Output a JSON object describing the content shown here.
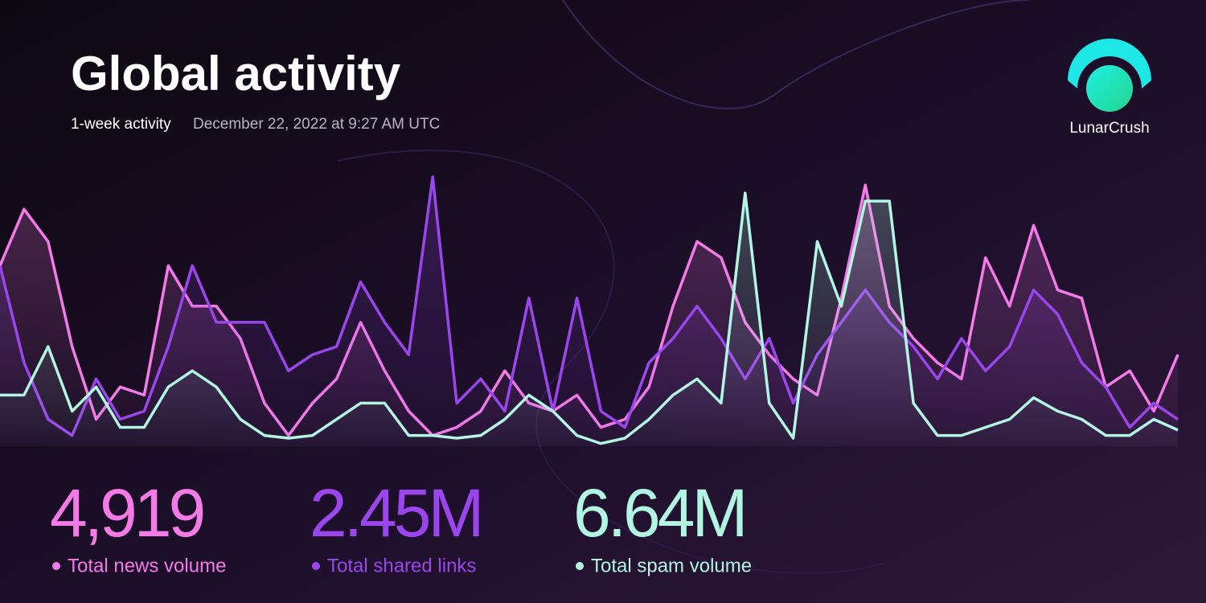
{
  "header": {
    "title": "Global activity",
    "period": "1-week activity",
    "timestamp": "December 22, 2022 at 9:27 AM UTC"
  },
  "logo": {
    "name": "LunarCrush"
  },
  "chart_data": {
    "type": "line",
    "ylim": [
      0,
      100
    ],
    "series": [
      {
        "name": "Total news volume",
        "total": "4,919",
        "color": "#f47ae8",
        "values": [
          67,
          88,
          76,
          37,
          10,
          22,
          19,
          67,
          52,
          52,
          40,
          16,
          4,
          16,
          25,
          46,
          28,
          13,
          4,
          7,
          13,
          28,
          16,
          13,
          19,
          7,
          10,
          22,
          52,
          76,
          70,
          46,
          34,
          25,
          19,
          55,
          97,
          52,
          40,
          31,
          25,
          70,
          52,
          82,
          58,
          55,
          22,
          28,
          13,
          34
        ]
      },
      {
        "name": "Total shared links",
        "total": "2.45M",
        "color": "#9b45ec",
        "values": [
          67,
          31,
          10,
          4,
          25,
          10,
          13,
          37,
          67,
          46,
          46,
          46,
          28,
          34,
          37,
          61,
          46,
          34,
          100,
          16,
          25,
          13,
          55,
          13,
          55,
          13,
          7,
          31,
          40,
          52,
          40,
          25,
          40,
          16,
          34,
          46,
          58,
          46,
          37,
          25,
          40,
          28,
          37,
          58,
          49,
          31,
          22,
          7,
          16,
          10
        ]
      },
      {
        "name": "Total spam volume",
        "total": "6.64M",
        "color": "#b2f5e3",
        "values": [
          19,
          19,
          37,
          13,
          22,
          7,
          7,
          22,
          28,
          22,
          10,
          4,
          3,
          4,
          10,
          16,
          16,
          4,
          4,
          3,
          4,
          10,
          19,
          13,
          4,
          1,
          3,
          10,
          19,
          25,
          16,
          94,
          16,
          3,
          76,
          52,
          91,
          91,
          16,
          4,
          4,
          7,
          10,
          18,
          13,
          10,
          4,
          4,
          10,
          6
        ]
      }
    ]
  }
}
